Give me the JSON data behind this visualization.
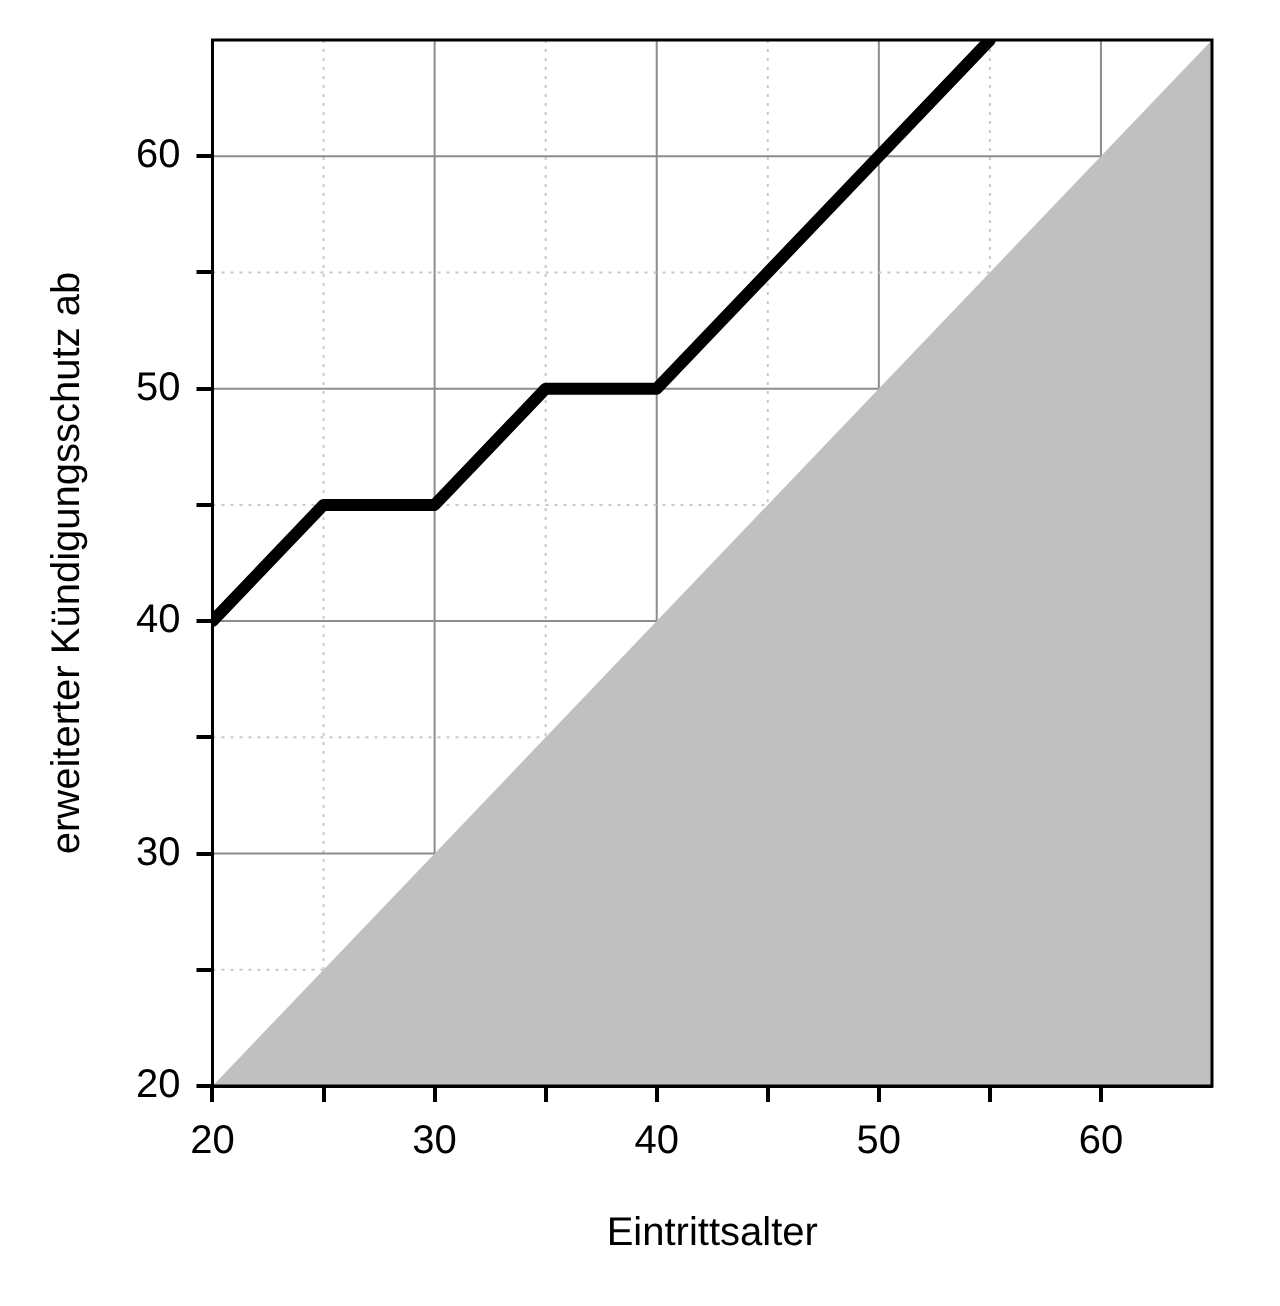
{
  "chart_data": {
    "type": "line",
    "xlabel": "Eintrittsalter",
    "ylabel": "erweiterter Kündigungsschutz ab",
    "xlim": [
      20,
      65
    ],
    "ylim": [
      20,
      65
    ],
    "xticks": [
      20,
      {
        "value": 25,
        "label": null
      },
      30,
      {
        "value": 35,
        "label": null
      },
      40,
      {
        "value": 45,
        "label": null
      },
      50,
      {
        "value": 55,
        "label": null
      },
      60
    ],
    "yticks": [
      20,
      {
        "value": 25,
        "label": null
      },
      30,
      {
        "value": 35,
        "label": null
      },
      40,
      {
        "value": 45,
        "label": null
      },
      50,
      {
        "value": 55,
        "label": null
      },
      60
    ],
    "grid": true,
    "marker": "none",
    "line_style": "solid",
    "series": [
      {
        "type": "area",
        "color": "#c0c0c0",
        "x": [
          20,
          65
        ],
        "values": [
          20,
          65
        ]
      },
      {
        "type": "line",
        "color": "#000000",
        "x": [
          20,
          25,
          30,
          35,
          40,
          55
        ],
        "values": [
          40,
          45,
          45,
          50,
          50,
          65
        ]
      }
    ]
  }
}
